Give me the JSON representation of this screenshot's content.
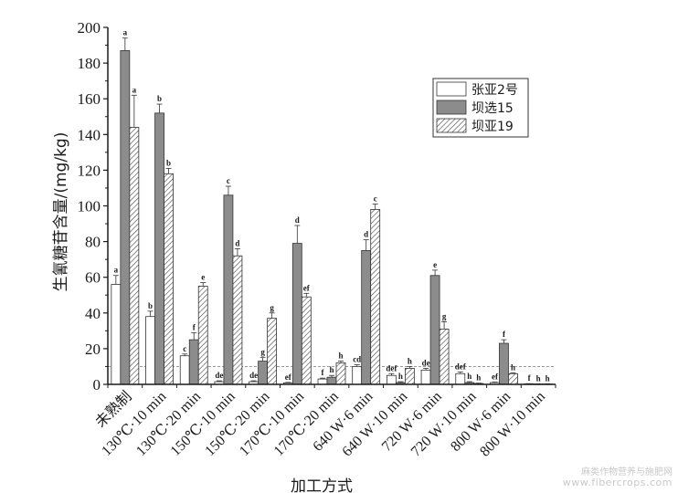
{
  "chart_data": {
    "type": "bar",
    "ylabel": "生氰糖苷含量/(mg/kg)",
    "xlabel": "加工方式",
    "ylim": [
      0,
      200
    ],
    "yticks": [
      0,
      20,
      40,
      60,
      80,
      100,
      120,
      140,
      160,
      180,
      200
    ],
    "reference_line": 10,
    "legend_position": "top-right",
    "categories": [
      "未熟制",
      "130℃·10 min",
      "130℃·20 min",
      "150℃·10 min",
      "150℃·20 min",
      "170℃·10 min",
      "170℃·20 min",
      "640 W·6 min",
      "640 W·10 min",
      "720 W·6 min",
      "720 W·10 min",
      "800 W·6 min",
      "800 W·10 min"
    ],
    "series": [
      {
        "name": "张亚2号",
        "color": "#ffffff",
        "pattern": "plain",
        "values": [
          56,
          38,
          16,
          1.5,
          1.5,
          0.8,
          3,
          10,
          5,
          8,
          6,
          1,
          0.3
        ],
        "errors": [
          5,
          3,
          1,
          0.5,
          0.5,
          0.3,
          0.5,
          1,
          1,
          1,
          1,
          0.3,
          0.1
        ],
        "labels": [
          "a",
          "b",
          "c",
          "de",
          "de",
          "ef",
          "f",
          "cd",
          "def",
          "de",
          "def",
          "ef",
          "f"
        ]
      },
      {
        "name": "坝选15",
        "color": "#8c8c8c",
        "pattern": "plain",
        "values": [
          187,
          152,
          25,
          106,
          13,
          79,
          4,
          75,
          1,
          61,
          1,
          23,
          0.2
        ],
        "errors": [
          7,
          5,
          4,
          5,
          2,
          10,
          1,
          6,
          0.5,
          3,
          0.5,
          2,
          0.1
        ],
        "labels": [
          "a",
          "b",
          "f",
          "c",
          "g",
          "d",
          "h",
          "d",
          "h",
          "e",
          "h",
          "f",
          "h"
        ]
      },
      {
        "name": "坝亚19",
        "color": "#ffffff",
        "pattern": "hatch",
        "values": [
          144,
          118,
          55,
          72,
          37,
          49,
          12,
          98,
          9,
          31,
          0.5,
          6,
          0.2
        ],
        "errors": [
          18,
          3,
          2,
          4,
          3,
          2,
          1,
          3,
          1,
          4,
          0.2,
          0.5,
          0.1
        ],
        "labels": [
          "a",
          "b",
          "e",
          "d",
          "g",
          "ef",
          "h",
          "c",
          "h",
          "g",
          "h",
          "h",
          "h"
        ]
      }
    ]
  },
  "watermark": {
    "line1": "麻类作物营养与施肥网",
    "line2": "www.fibercrops.com"
  }
}
